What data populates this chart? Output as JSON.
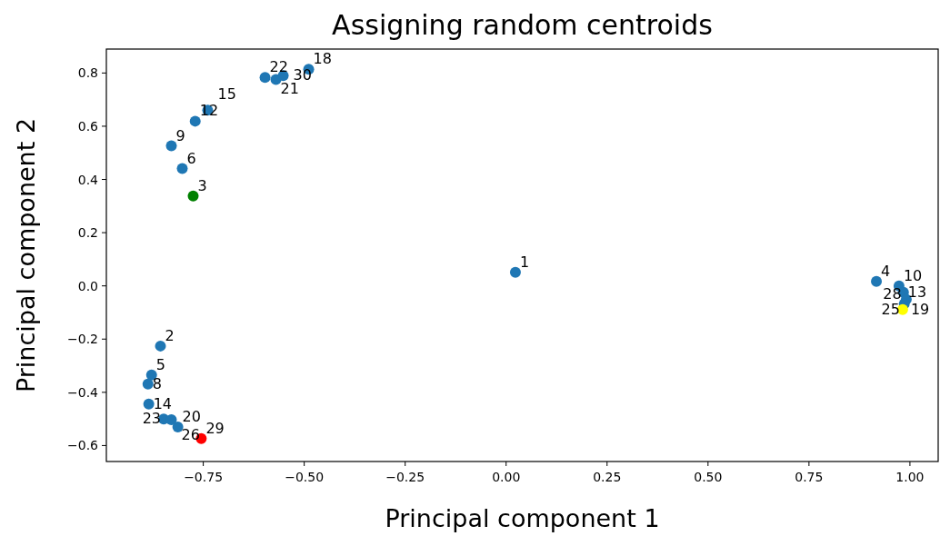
{
  "chart_data": {
    "type": "scatter",
    "title": "Assigning random centroids",
    "xlabel": "Principal component 1",
    "ylabel": "Principal component 2",
    "xlim": [
      -0.99,
      1.07
    ],
    "ylim": [
      -0.66,
      0.89
    ],
    "xticks": [
      {
        "value": -0.75,
        "label": "−0.75"
      },
      {
        "value": -0.5,
        "label": "−0.50"
      },
      {
        "value": -0.25,
        "label": "−0.25"
      },
      {
        "value": 0,
        "label": "0.00"
      },
      {
        "value": 0.25,
        "label": "0.25"
      },
      {
        "value": 0.5,
        "label": "0.50"
      },
      {
        "value": 0.75,
        "label": "0.75"
      },
      {
        "value": 1,
        "label": "1.00"
      }
    ],
    "yticks": [
      {
        "value": -0.6,
        "label": "−0.6"
      },
      {
        "value": -0.4,
        "label": "−0.4"
      },
      {
        "value": -0.2,
        "label": "−0.2"
      },
      {
        "value": 0,
        "label": "0.0"
      },
      {
        "value": 0.2,
        "label": "0.2"
      },
      {
        "value": 0.4,
        "label": "0.4"
      },
      {
        "value": 0.6,
        "label": "0.6"
      },
      {
        "value": 0.8,
        "label": "0.8"
      }
    ],
    "grid": false,
    "marker": "circle",
    "series": [
      {
        "color": "#1f77b4",
        "x": [
          0.023,
          -0.856,
          0.917,
          -0.878,
          -0.802,
          -0.887,
          -0.829,
          0.973,
          -0.77,
          -0.885,
          -0.739,
          -0.489,
          -0.813,
          -0.597,
          -0.57,
          -0.552,
          -0.848,
          -0.829,
          0.984,
          0.991,
          0.986
        ],
        "values": [
          0.051,
          -0.226,
          0.017,
          -0.335,
          0.441,
          -0.369,
          0.526,
          0.0,
          0.619,
          -0.444,
          0.66,
          0.814,
          -0.53,
          0.783,
          0.776,
          0.79,
          -0.5,
          -0.503,
          -0.024,
          -0.051,
          -0.068
        ]
      },
      {
        "color": "#008000",
        "x": [
          -0.775
        ],
        "values": [
          0.338
        ]
      },
      {
        "color": "#ff0000",
        "x": [
          -0.755
        ],
        "values": [
          -0.574
        ]
      },
      {
        "color": "#ffff00",
        "x": [
          0.982
        ],
        "values": [
          -0.089
        ]
      }
    ],
    "annotations": [
      {
        "text": "1",
        "x": 0.023,
        "y": 0.051
      },
      {
        "text": "2",
        "x": -0.856,
        "y": -0.226
      },
      {
        "text": "4",
        "x": 0.917,
        "y": 0.017
      },
      {
        "text": "5",
        "x": -0.878,
        "y": -0.335
      },
      {
        "text": "6",
        "x": -0.802,
        "y": 0.441
      },
      {
        "text": "8",
        "x": -0.887,
        "y": -0.369
      },
      {
        "text": "9",
        "x": -0.829,
        "y": 0.526
      },
      {
        "text": "10",
        "x": 0.973,
        "y": 0.0
      },
      {
        "text": "12",
        "x": -0.77,
        "y": 0.619
      },
      {
        "text": "14",
        "x": -0.885,
        "y": -0.444
      },
      {
        "text": "15",
        "x": -0.739,
        "y": 0.66
      },
      {
        "text": "18",
        "x": -0.489,
        "y": 0.814
      },
      {
        "text": "20",
        "x": -0.813,
        "y": -0.53
      },
      {
        "text": "22",
        "x": -0.597,
        "y": 0.783
      },
      {
        "text": "21",
        "x": -0.57,
        "y": 0.776
      },
      {
        "text": "30",
        "x": -0.552,
        "y": 0.79
      },
      {
        "text": "23",
        "x": -0.848,
        "y": -0.5
      },
      {
        "text": "26",
        "x": -0.829,
        "y": -0.503
      },
      {
        "text": "13",
        "x": 0.984,
        "y": -0.024
      },
      {
        "text": "19",
        "x": 0.991,
        "y": -0.051
      },
      {
        "text": "28",
        "x": 0.986,
        "y": -0.068
      },
      {
        "text": "3",
        "x": -0.775,
        "y": 0.338
      },
      {
        "text": "29",
        "x": -0.755,
        "y": -0.574
      },
      {
        "text": "25",
        "x": 0.982,
        "y": -0.089
      }
    ]
  }
}
